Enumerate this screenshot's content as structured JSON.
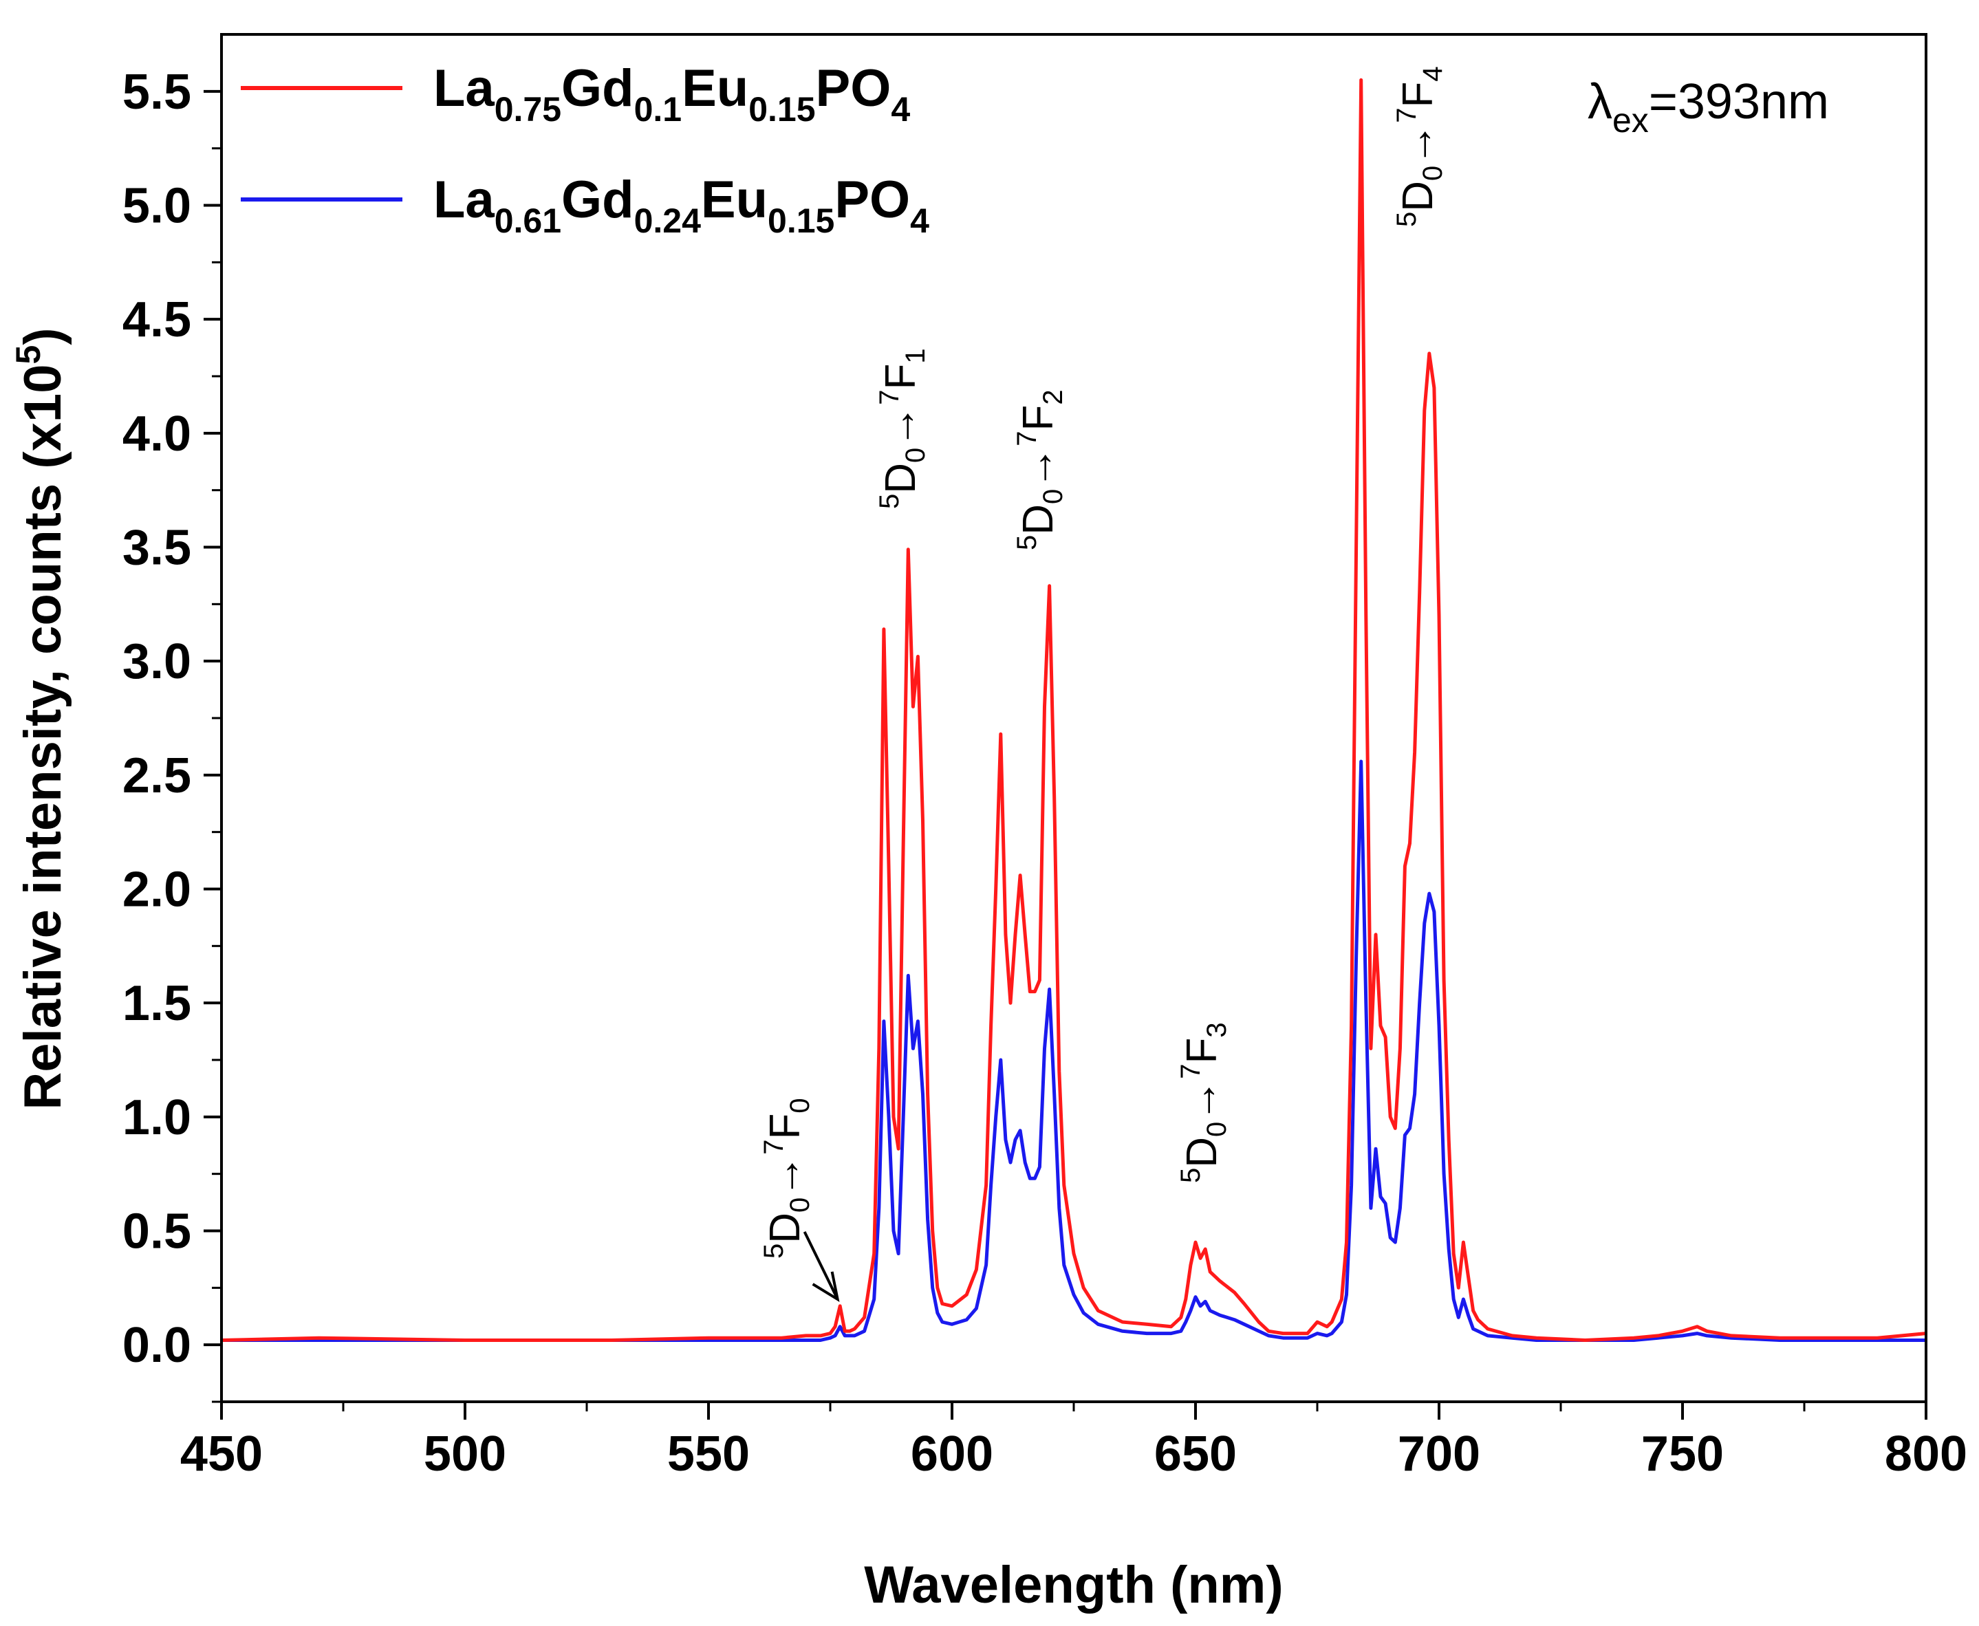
{
  "chart_data": {
    "type": "line",
    "xlabel": "Wavelength (nm)",
    "ylabel": {
      "text": "Relative intensity, counts (x10",
      "sup": "5",
      "close": ")"
    },
    "xlim": [
      450,
      800
    ],
    "ylim": [
      -0.25,
      5.75
    ],
    "xticks": [
      450,
      500,
      550,
      600,
      650,
      700,
      750,
      800
    ],
    "yticks": [
      0.0,
      0.5,
      1.0,
      1.5,
      2.0,
      2.5,
      3.0,
      3.5,
      4.0,
      4.5,
      5.0,
      5.5
    ],
    "ytick_labels": [
      "0.0",
      "0.5",
      "1.0",
      "1.5",
      "2.0",
      "2.5",
      "3.0",
      "3.5",
      "4.0",
      "4.5",
      "5.0",
      "5.5"
    ],
    "grid": false,
    "legend_position": "top-left",
    "excitation_label": {
      "lambda": "λ",
      "sub": "ex",
      "rest": "=393nm"
    },
    "series": [
      {
        "name": "La0.75Gd0.1Eu0.15PO4",
        "label_parts": [
          {
            "t": "La",
            "sub": false
          },
          {
            "t": "0.75",
            "sub": true
          },
          {
            "t": "Gd",
            "sub": false
          },
          {
            "t": "0.1",
            "sub": true
          },
          {
            "t": "Eu",
            "sub": false
          },
          {
            "t": "0.15",
            "sub": true
          },
          {
            "t": "PO",
            "sub": false
          },
          {
            "t": "4",
            "sub": true
          }
        ],
        "color": "#ff1a1a",
        "x": [
          450,
          470,
          500,
          530,
          550,
          560,
          565,
          570,
          573,
          575,
          576,
          577,
          578,
          579,
          580,
          582,
          584,
          585,
          586,
          587,
          588,
          589,
          590,
          591,
          592,
          593,
          594,
          595,
          596,
          597,
          598,
          600,
          603,
          605,
          607,
          608,
          609,
          610,
          611,
          612,
          613,
          614,
          615,
          616,
          617,
          618,
          619,
          620,
          621,
          622,
          623,
          625,
          627,
          630,
          635,
          640,
          645,
          647,
          648,
          649,
          650,
          651,
          652,
          653,
          655,
          658,
          660,
          663,
          665,
          668,
          670,
          673,
          675,
          677,
          678,
          680,
          681,
          682,
          683,
          684,
          685,
          686,
          687,
          688,
          689,
          690,
          691,
          692,
          693,
          694,
          695,
          696,
          697,
          698,
          699,
          700,
          701,
          702,
          703,
          704,
          705,
          706,
          707,
          708,
          710,
          715,
          720,
          730,
          740,
          745,
          750,
          753,
          755,
          760,
          770,
          780,
          790,
          800
        ],
        "values": [
          0.02,
          0.03,
          0.02,
          0.02,
          0.03,
          0.03,
          0.03,
          0.04,
          0.04,
          0.05,
          0.08,
          0.17,
          0.06,
          0.06,
          0.07,
          0.12,
          0.4,
          1.3,
          3.14,
          2.1,
          1.0,
          0.86,
          2.2,
          3.49,
          2.8,
          3.02,
          2.3,
          1.1,
          0.5,
          0.25,
          0.18,
          0.17,
          0.22,
          0.33,
          0.7,
          1.4,
          2.0,
          2.68,
          1.8,
          1.5,
          1.8,
          2.06,
          1.8,
          1.55,
          1.55,
          1.6,
          2.8,
          3.33,
          2.4,
          1.2,
          0.7,
          0.4,
          0.25,
          0.15,
          0.1,
          0.09,
          0.08,
          0.12,
          0.2,
          0.35,
          0.45,
          0.38,
          0.42,
          0.32,
          0.28,
          0.23,
          0.18,
          0.1,
          0.06,
          0.05,
          0.05,
          0.05,
          0.1,
          0.08,
          0.1,
          0.2,
          0.45,
          1.4,
          3.5,
          5.55,
          3.2,
          1.3,
          1.8,
          1.4,
          1.35,
          1.0,
          0.95,
          1.3,
          2.1,
          2.2,
          2.6,
          3.3,
          4.1,
          4.35,
          4.2,
          3.2,
          1.6,
          0.9,
          0.4,
          0.25,
          0.45,
          0.3,
          0.15,
          0.11,
          0.07,
          0.04,
          0.03,
          0.02,
          0.03,
          0.04,
          0.06,
          0.08,
          0.06,
          0.04,
          0.03,
          0.03,
          0.03,
          0.05
        ]
      },
      {
        "name": "La0.61Gd0.24Eu0.15PO4",
        "label_parts": [
          {
            "t": "La",
            "sub": false
          },
          {
            "t": "0.61",
            "sub": true
          },
          {
            "t": "Gd",
            "sub": false
          },
          {
            "t": "0.24",
            "sub": true
          },
          {
            "t": "Eu",
            "sub": false
          },
          {
            "t": "0.15",
            "sub": true
          },
          {
            "t": "PO",
            "sub": false
          },
          {
            "t": "4",
            "sub": true
          }
        ],
        "color": "#1a1aee",
        "x": [
          450,
          470,
          500,
          530,
          550,
          560,
          565,
          570,
          573,
          575,
          576,
          577,
          578,
          579,
          580,
          582,
          584,
          585,
          586,
          587,
          588,
          589,
          590,
          591,
          592,
          593,
          594,
          595,
          596,
          597,
          598,
          600,
          603,
          605,
          607,
          608,
          609,
          610,
          611,
          612,
          613,
          614,
          615,
          616,
          617,
          618,
          619,
          620,
          621,
          622,
          623,
          625,
          627,
          630,
          635,
          640,
          645,
          647,
          648,
          649,
          650,
          651,
          652,
          653,
          655,
          658,
          660,
          663,
          665,
          668,
          670,
          673,
          675,
          677,
          678,
          680,
          681,
          682,
          683,
          684,
          685,
          686,
          687,
          688,
          689,
          690,
          691,
          692,
          693,
          694,
          695,
          696,
          697,
          698,
          699,
          700,
          701,
          702,
          703,
          704,
          705,
          706,
          707,
          708,
          710,
          715,
          720,
          730,
          740,
          745,
          750,
          753,
          755,
          760,
          770,
          780,
          790,
          800
        ],
        "values": [
          0.02,
          0.02,
          0.02,
          0.02,
          0.02,
          0.02,
          0.02,
          0.02,
          0.02,
          0.03,
          0.04,
          0.08,
          0.04,
          0.04,
          0.04,
          0.06,
          0.2,
          0.6,
          1.42,
          1.0,
          0.5,
          0.4,
          1.0,
          1.62,
          1.3,
          1.42,
          1.1,
          0.55,
          0.25,
          0.14,
          0.1,
          0.09,
          0.11,
          0.16,
          0.35,
          0.7,
          1.0,
          1.25,
          0.9,
          0.8,
          0.9,
          0.94,
          0.8,
          0.73,
          0.73,
          0.78,
          1.3,
          1.56,
          1.1,
          0.6,
          0.35,
          0.22,
          0.14,
          0.09,
          0.06,
          0.05,
          0.05,
          0.06,
          0.1,
          0.15,
          0.21,
          0.17,
          0.19,
          0.15,
          0.13,
          0.11,
          0.09,
          0.06,
          0.04,
          0.03,
          0.03,
          0.03,
          0.05,
          0.04,
          0.05,
          0.1,
          0.22,
          0.7,
          1.7,
          2.56,
          1.5,
          0.6,
          0.86,
          0.65,
          0.62,
          0.47,
          0.45,
          0.6,
          0.92,
          0.95,
          1.1,
          1.5,
          1.85,
          1.98,
          1.9,
          1.4,
          0.75,
          0.42,
          0.2,
          0.12,
          0.2,
          0.13,
          0.07,
          0.06,
          0.04,
          0.03,
          0.02,
          0.02,
          0.02,
          0.03,
          0.04,
          0.05,
          0.04,
          0.03,
          0.02,
          0.02,
          0.02,
          0.02
        ]
      }
    ],
    "transitions": [
      {
        "sup1": "5",
        "base1": "D",
        "sub1": "0",
        "arrow": "→",
        "sup2": "7",
        "base2": "F",
        "sub2": "0"
      },
      {
        "sup1": "5",
        "base1": "D",
        "sub1": "0",
        "arrow": "→",
        "sup2": "7",
        "base2": "F",
        "sub2": "1"
      },
      {
        "sup1": "5",
        "base1": "D",
        "sub1": "0",
        "arrow": "→",
        "sup2": "7",
        "base2": "F",
        "sub2": "2"
      },
      {
        "sup1": "5",
        "base1": "D",
        "sub1": "0",
        "arrow": "→",
        "sup2": "7",
        "base2": "F",
        "sub2": "3"
      },
      {
        "sup1": "5",
        "base1": "D",
        "sub1": "0",
        "arrow": "→",
        "sup2": "7",
        "base2": "F",
        "sub2": "4"
      }
    ]
  }
}
